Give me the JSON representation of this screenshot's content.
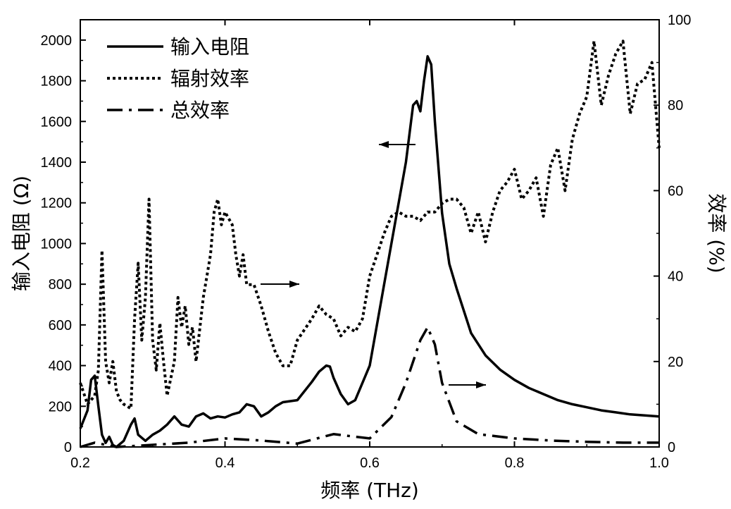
{
  "chart_data": {
    "type": "line",
    "xlabel": "频率 (THz)",
    "ylabel_left": "输入电阻 (Ω)",
    "ylabel_right": "效率 (%)",
    "xlim": [
      0.2,
      1.0
    ],
    "ylim_left": [
      0,
      2100
    ],
    "ylim_right": [
      0,
      100
    ],
    "x_ticks": [
      "0.2",
      "0.4",
      "0.6",
      "0.8",
      "1.0"
    ],
    "y_left_ticks": [
      "0",
      "200",
      "400",
      "600",
      "800",
      "1000",
      "1200",
      "1400",
      "1600",
      "1800",
      "2000"
    ],
    "y_right_ticks": [
      "0",
      "20",
      "40",
      "60",
      "80",
      "100"
    ],
    "grid": false,
    "legend_position": "top-left",
    "series": [
      {
        "name": "输入电阻",
        "axis": "left",
        "style": "solid",
        "points": [
          [
            0.2,
            90
          ],
          [
            0.21,
            180
          ],
          [
            0.215,
            330
          ],
          [
            0.22,
            350
          ],
          [
            0.225,
            200
          ],
          [
            0.23,
            60
          ],
          [
            0.235,
            20
          ],
          [
            0.24,
            50
          ],
          [
            0.245,
            10
          ],
          [
            0.25,
            0
          ],
          [
            0.26,
            30
          ],
          [
            0.27,
            110
          ],
          [
            0.275,
            140
          ],
          [
            0.28,
            60
          ],
          [
            0.29,
            30
          ],
          [
            0.3,
            60
          ],
          [
            0.31,
            80
          ],
          [
            0.32,
            110
          ],
          [
            0.33,
            150
          ],
          [
            0.34,
            110
          ],
          [
            0.35,
            100
          ],
          [
            0.36,
            150
          ],
          [
            0.37,
            165
          ],
          [
            0.38,
            140
          ],
          [
            0.39,
            150
          ],
          [
            0.4,
            145
          ],
          [
            0.41,
            160
          ],
          [
            0.42,
            170
          ],
          [
            0.43,
            210
          ],
          [
            0.44,
            200
          ],
          [
            0.45,
            150
          ],
          [
            0.46,
            170
          ],
          [
            0.47,
            200
          ],
          [
            0.48,
            220
          ],
          [
            0.5,
            230
          ],
          [
            0.52,
            320
          ],
          [
            0.53,
            370
          ],
          [
            0.54,
            400
          ],
          [
            0.545,
            395
          ],
          [
            0.55,
            340
          ],
          [
            0.56,
            260
          ],
          [
            0.57,
            210
          ],
          [
            0.58,
            230
          ],
          [
            0.6,
            400
          ],
          [
            0.62,
            800
          ],
          [
            0.64,
            1200
          ],
          [
            0.65,
            1400
          ],
          [
            0.66,
            1680
          ],
          [
            0.665,
            1700
          ],
          [
            0.67,
            1650
          ],
          [
            0.675,
            1800
          ],
          [
            0.68,
            1920
          ],
          [
            0.685,
            1880
          ],
          [
            0.69,
            1600
          ],
          [
            0.7,
            1150
          ],
          [
            0.71,
            900
          ],
          [
            0.72,
            780
          ],
          [
            0.74,
            560
          ],
          [
            0.76,
            450
          ],
          [
            0.78,
            380
          ],
          [
            0.8,
            330
          ],
          [
            0.82,
            290
          ],
          [
            0.84,
            260
          ],
          [
            0.86,
            230
          ],
          [
            0.88,
            210
          ],
          [
            0.9,
            195
          ],
          [
            0.92,
            180
          ],
          [
            0.94,
            170
          ],
          [
            0.96,
            160
          ],
          [
            0.98,
            155
          ],
          [
            1.0,
            150
          ]
        ]
      },
      {
        "name": "辐射效率",
        "axis": "right",
        "style": "dotted",
        "points": [
          [
            0.2,
            15
          ],
          [
            0.21,
            10
          ],
          [
            0.22,
            12
          ],
          [
            0.225,
            18
          ],
          [
            0.23,
            46
          ],
          [
            0.235,
            20
          ],
          [
            0.24,
            15
          ],
          [
            0.245,
            20
          ],
          [
            0.25,
            13
          ],
          [
            0.255,
            11
          ],
          [
            0.26,
            10
          ],
          [
            0.27,
            9
          ],
          [
            0.275,
            30
          ],
          [
            0.28,
            43
          ],
          [
            0.285,
            25
          ],
          [
            0.29,
            35
          ],
          [
            0.295,
            58
          ],
          [
            0.3,
            25
          ],
          [
            0.305,
            18
          ],
          [
            0.31,
            29
          ],
          [
            0.315,
            20
          ],
          [
            0.32,
            12
          ],
          [
            0.33,
            20
          ],
          [
            0.335,
            35
          ],
          [
            0.34,
            28
          ],
          [
            0.345,
            33
          ],
          [
            0.35,
            24
          ],
          [
            0.355,
            28
          ],
          [
            0.36,
            20
          ],
          [
            0.37,
            35
          ],
          [
            0.38,
            45
          ],
          [
            0.385,
            55
          ],
          [
            0.39,
            58
          ],
          [
            0.395,
            52
          ],
          [
            0.4,
            55
          ],
          [
            0.41,
            52
          ],
          [
            0.415,
            45
          ],
          [
            0.42,
            40
          ],
          [
            0.425,
            45
          ],
          [
            0.43,
            38
          ],
          [
            0.44,
            38
          ],
          [
            0.45,
            33
          ],
          [
            0.46,
            27
          ],
          [
            0.47,
            22
          ],
          [
            0.48,
            19
          ],
          [
            0.49,
            19
          ],
          [
            0.5,
            25
          ],
          [
            0.52,
            30
          ],
          [
            0.53,
            33
          ],
          [
            0.54,
            31
          ],
          [
            0.55,
            30
          ],
          [
            0.56,
            26
          ],
          [
            0.57,
            28
          ],
          [
            0.58,
            27
          ],
          [
            0.59,
            30
          ],
          [
            0.6,
            40
          ],
          [
            0.61,
            45
          ],
          [
            0.62,
            50
          ],
          [
            0.63,
            54
          ],
          [
            0.64,
            55
          ],
          [
            0.65,
            54
          ],
          [
            0.66,
            54
          ],
          [
            0.67,
            53
          ],
          [
            0.68,
            55
          ],
          [
            0.69,
            55
          ],
          [
            0.7,
            57
          ],
          [
            0.71,
            58
          ],
          [
            0.72,
            58
          ],
          [
            0.73,
            56
          ],
          [
            0.74,
            50
          ],
          [
            0.75,
            55
          ],
          [
            0.76,
            48
          ],
          [
            0.77,
            55
          ],
          [
            0.78,
            60
          ],
          [
            0.79,
            62
          ],
          [
            0.8,
            65
          ],
          [
            0.81,
            58
          ],
          [
            0.82,
            60
          ],
          [
            0.83,
            63
          ],
          [
            0.84,
            54
          ],
          [
            0.85,
            66
          ],
          [
            0.86,
            70
          ],
          [
            0.87,
            60
          ],
          [
            0.88,
            72
          ],
          [
            0.89,
            78
          ],
          [
            0.9,
            82
          ],
          [
            0.91,
            95
          ],
          [
            0.92,
            80
          ],
          [
            0.93,
            87
          ],
          [
            0.94,
            92
          ],
          [
            0.95,
            95
          ],
          [
            0.96,
            78
          ],
          [
            0.97,
            85
          ],
          [
            0.98,
            86
          ],
          [
            0.99,
            90
          ],
          [
            1.0,
            70
          ]
        ]
      },
      {
        "name": "总效率",
        "axis": "right",
        "style": "dash-dot",
        "points": [
          [
            0.2,
            0
          ],
          [
            0.22,
            1
          ],
          [
            0.25,
            0
          ],
          [
            0.3,
            0.5
          ],
          [
            0.35,
            1
          ],
          [
            0.4,
            2
          ],
          [
            0.45,
            1.5
          ],
          [
            0.5,
            0.8
          ],
          [
            0.55,
            3
          ],
          [
            0.6,
            2
          ],
          [
            0.63,
            7
          ],
          [
            0.65,
            15
          ],
          [
            0.67,
            25
          ],
          [
            0.68,
            28
          ],
          [
            0.69,
            24
          ],
          [
            0.7,
            15
          ],
          [
            0.72,
            6
          ],
          [
            0.75,
            3
          ],
          [
            0.8,
            2
          ],
          [
            0.85,
            1.5
          ],
          [
            0.9,
            1.2
          ],
          [
            0.95,
            1
          ],
          [
            1.0,
            1
          ]
        ]
      }
    ],
    "annotation_arrows": [
      {
        "series": "输入电阻",
        "direction": "left"
      },
      {
        "series": "辐射效率",
        "direction": "right"
      },
      {
        "series": "总效率",
        "direction": "right"
      }
    ]
  }
}
